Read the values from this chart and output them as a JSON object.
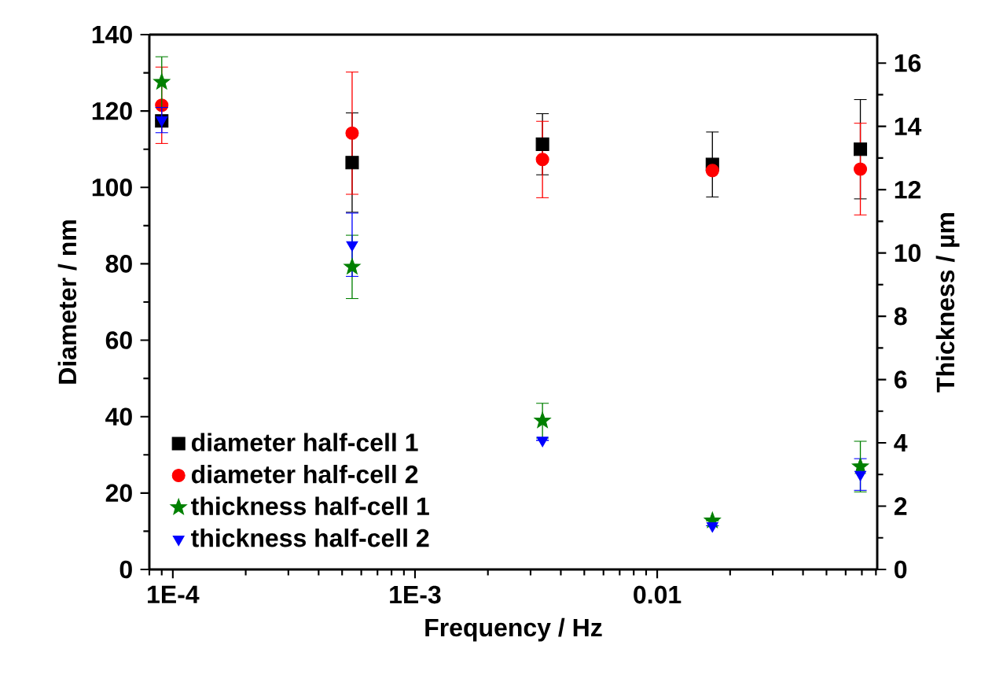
{
  "chart_data": {
    "type": "scatter",
    "xlabel": "Frequency / Hz",
    "ylabel": "Diameter / nm",
    "y2label": "Thickness / µm",
    "log": "x",
    "x": [
      9e-05,
      0.00055,
      0.00336,
      0.0169,
      0.069
    ],
    "xlim": [
      8e-05,
      0.081
    ],
    "xticks": [
      {
        "value": 0.0001,
        "label": "1E-4"
      },
      {
        "value": 0.001,
        "label": "1E-3"
      },
      0.01
    ],
    "ylim": [
      0,
      140
    ],
    "yticks": [
      0,
      20,
      40,
      60,
      80,
      100,
      120,
      140
    ],
    "y2lim": [
      0,
      16.9
    ],
    "y2ticks": [
      0,
      2,
      4,
      6,
      8,
      10,
      12,
      14,
      16
    ],
    "legend": "bottom left",
    "grid": false,
    "series": [
      {
        "name": "diameter half-cell 1",
        "color": "#000000",
        "marker": "square",
        "values": [
          117.4,
          106.5,
          111.3,
          106,
          110
        ],
        "errors": [
          null,
          13,
          8,
          8.5,
          13
        ]
      },
      {
        "name": "diameter half-cell 2",
        "color": "#ff0000",
        "marker": "circle",
        "values": [
          121.5,
          114.2,
          107.3,
          104.4,
          104.8
        ],
        "errors": [
          10,
          16,
          10,
          null,
          12
        ]
      },
      {
        "name": "thickness half-cell 1",
        "color": "#008000",
        "marker": "star",
        "axis": "y2",
        "values": [
          15.4,
          9.56,
          4.7,
          1.54,
          3.25
        ],
        "errors": [
          0.8,
          1,
          0.55,
          null,
          0.8
        ]
      },
      {
        "name": "thickness half-cell 2",
        "color": "#0000ff",
        "marker": "triangle",
        "axis": "y2",
        "values": [
          14.2,
          10.26,
          4.08,
          1.38,
          3.0
        ],
        "errors": [
          0.4,
          1,
          null,
          null,
          0.5
        ]
      }
    ]
  }
}
